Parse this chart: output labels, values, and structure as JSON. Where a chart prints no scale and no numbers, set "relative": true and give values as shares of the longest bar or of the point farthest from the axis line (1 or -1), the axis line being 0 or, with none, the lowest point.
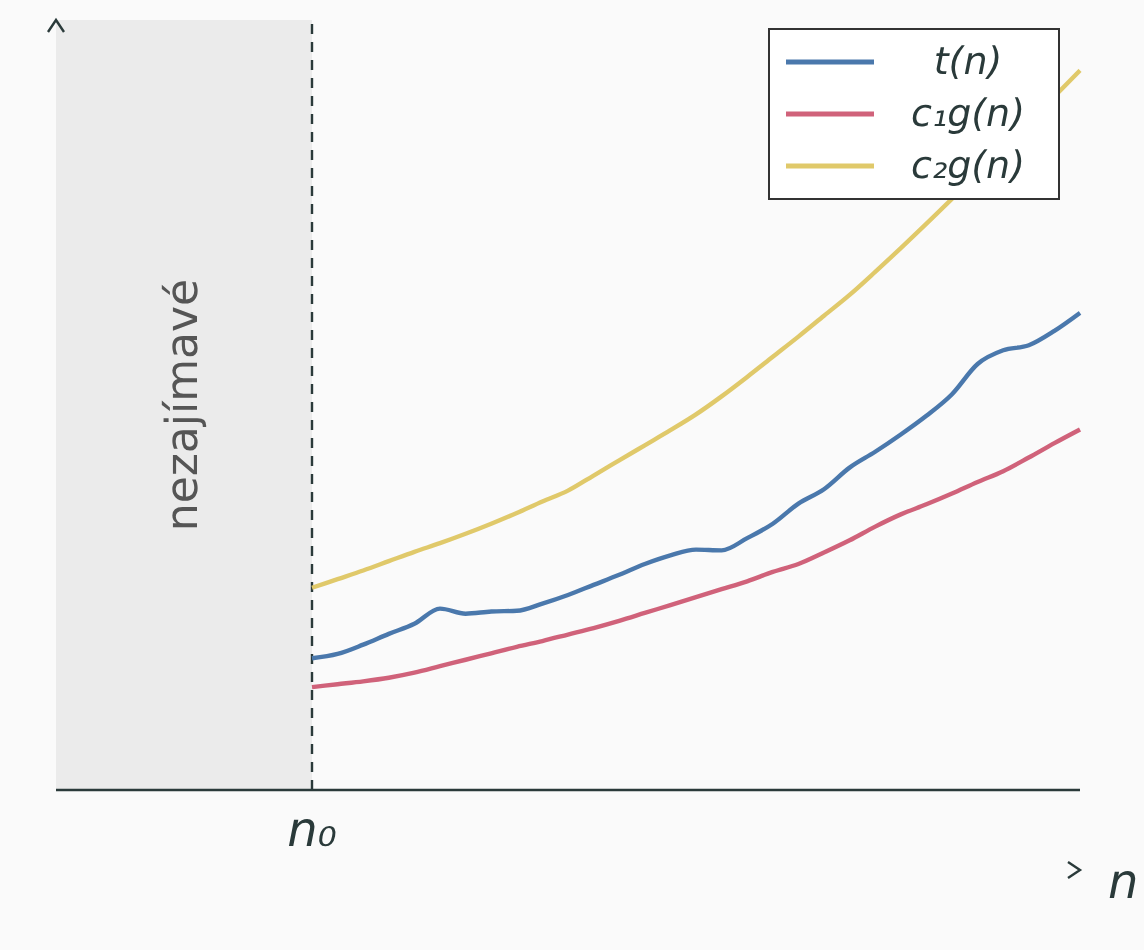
{
  "chart_data": {
    "type": "line",
    "relative": true,
    "xlabel": "n",
    "legend": "top right",
    "annotations": [
      "nezajímavé",
      "n₀"
    ],
    "categories": [
      null,
      null,
      null,
      null,
      null,
      null,
      null,
      null,
      null,
      null,
      null,
      null,
      null,
      null,
      null,
      null,
      null,
      null,
      null,
      null,
      null,
      null,
      null,
      null,
      null,
      null,
      null,
      null,
      null,
      null,
      null,
      null,
      null,
      null,
      null,
      null,
      null,
      null,
      null,
      null,
      null
    ],
    "series": [
      {
        "name": "t(n)",
        "color": "#4a78ac",
        "values": [
          null,
          null,
          null,
          null,
          null,
          null,
          null,
          null,
          null,
          null,
          0.183,
          0.189,
          0.202,
          0.217,
          0.231,
          0.252,
          0.245,
          0.248,
          0.249,
          0.259,
          0.271,
          0.285,
          0.299,
          0.314,
          0.326,
          0.334,
          0.333,
          0.35,
          0.37,
          0.398,
          0.418,
          0.448,
          0.47,
          0.494,
          0.52,
          0.55,
          0.592,
          0.611,
          0.618,
          0.638,
          0.663
        ]
      },
      {
        "name": "c₁g(n)",
        "color": "#d0627a",
        "values": [
          null,
          null,
          null,
          null,
          null,
          null,
          null,
          null,
          null,
          null,
          0.143,
          0.147,
          0.151,
          0.156,
          0.163,
          0.172,
          0.181,
          0.19,
          0.199,
          0.207,
          0.216,
          0.225,
          0.235,
          0.246,
          0.257,
          0.268,
          0.279,
          0.29,
          0.303,
          0.314,
          0.33,
          0.347,
          0.366,
          0.383,
          0.397,
          0.412,
          0.428,
          0.443,
          0.462,
          0.482,
          0.501
        ]
      },
      {
        "name": "c₂g(n)",
        "color": "#e0c96a",
        "values": [
          null,
          null,
          null,
          null,
          null,
          null,
          null,
          null,
          null,
          null,
          0.281,
          0.293,
          0.305,
          0.318,
          0.331,
          0.343,
          0.356,
          0.37,
          0.385,
          0.401,
          0.416,
          0.437,
          0.458,
          0.479,
          0.5,
          0.522,
          0.547,
          0.574,
          0.602,
          0.63,
          0.659,
          0.688,
          0.72,
          0.753,
          null,
          null,
          null,
          null,
          null,
          null,
          1.0
        ]
      }
    ]
  }
}
